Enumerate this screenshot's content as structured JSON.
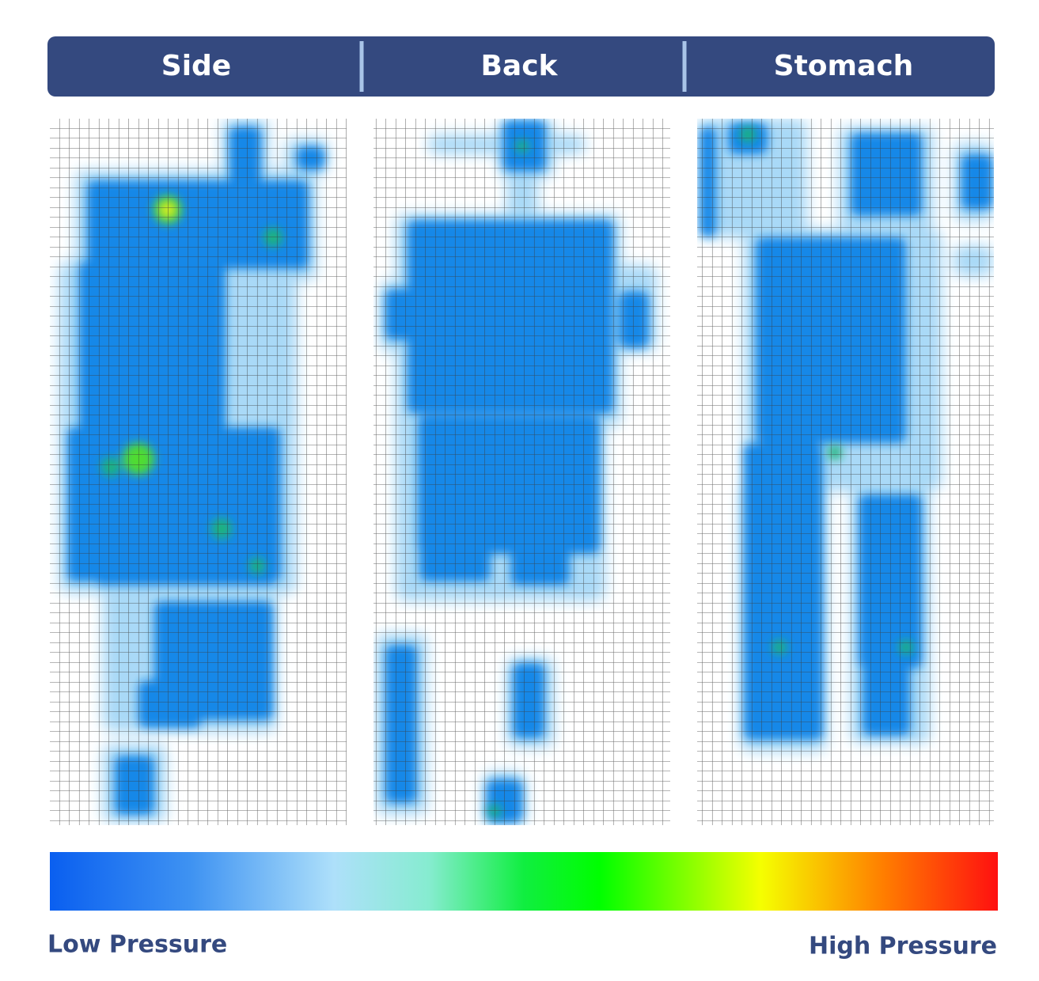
{
  "header": {
    "tabs": [
      "Side",
      "Back",
      "Stomach"
    ]
  },
  "legend": {
    "low": "Low Pressure",
    "high": "High Pressure"
  }
}
